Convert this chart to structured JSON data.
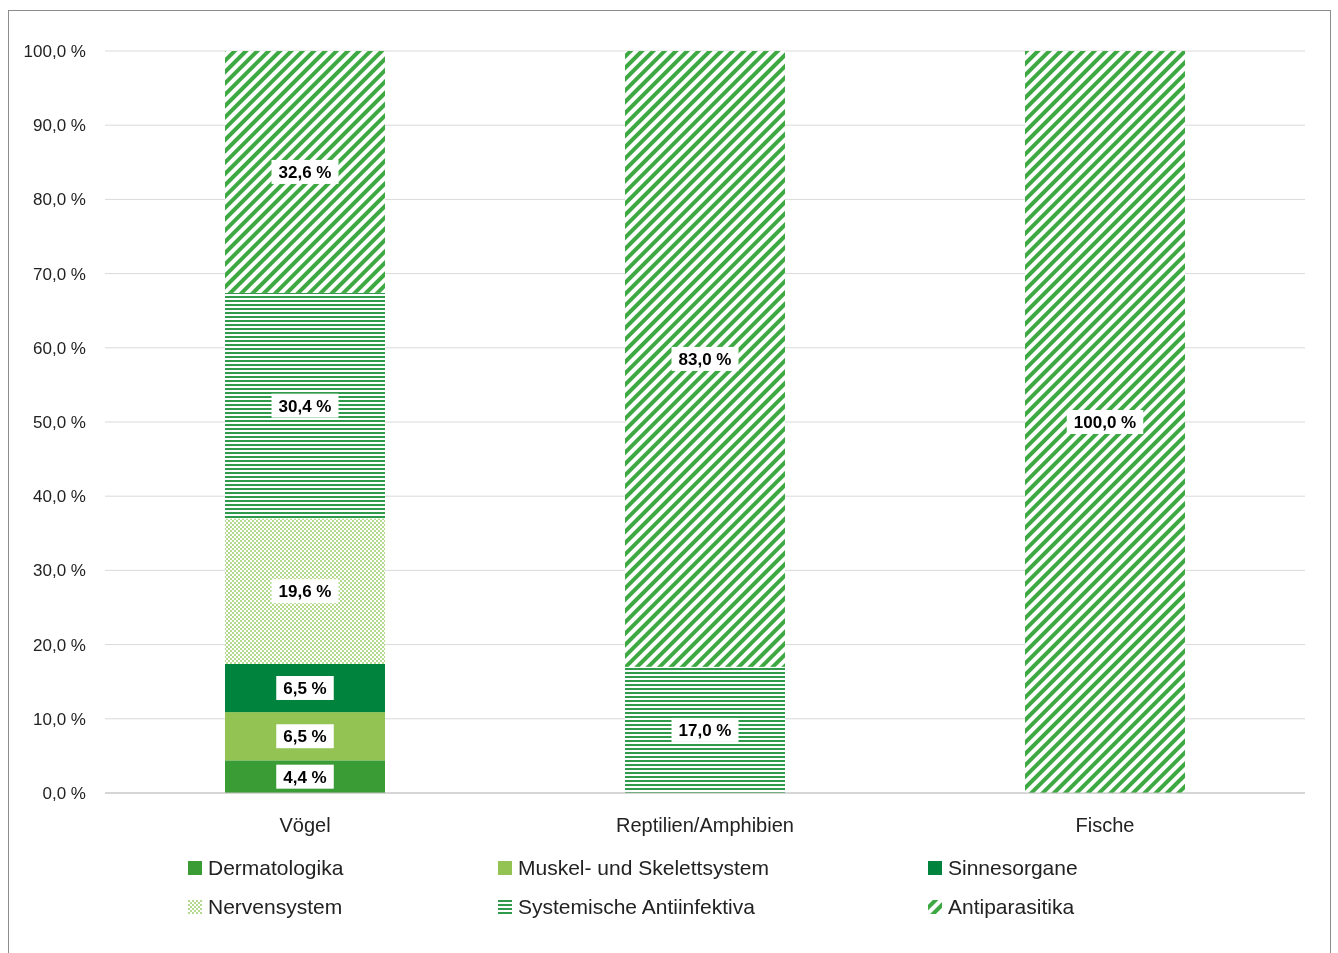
{
  "chart_data": {
    "type": "bar",
    "stacked": true,
    "categories": [
      "Vögel",
      "Reptilien/Amphibien",
      "Fische"
    ],
    "ylim": [
      0,
      100
    ],
    "yticks": [
      {
        "value": 0,
        "label": "0,0 %"
      },
      {
        "value": 10,
        "label": "10,0 %"
      },
      {
        "value": 20,
        "label": "20,0 %"
      },
      {
        "value": 30,
        "label": "30,0 %"
      },
      {
        "value": 40,
        "label": "40,0 %"
      },
      {
        "value": 50,
        "label": "50,0 %"
      },
      {
        "value": 60,
        "label": "60,0 %"
      },
      {
        "value": 70,
        "label": "70,0 %"
      },
      {
        "value": 80,
        "label": "80,0 %"
      },
      {
        "value": 90,
        "label": "90,0 %"
      },
      {
        "value": 100,
        "label": "100,0 %"
      }
    ],
    "grid": "y",
    "legend": "bottom",
    "series": [
      {
        "name": "Dermatologika",
        "color": "#3a9c35",
        "values": [
          4.4,
          null,
          null
        ],
        "value_labels": [
          "4,4 %",
          null,
          null
        ]
      },
      {
        "name": "Muskel- und Skelettsystem",
        "color": "#92c353",
        "values": [
          6.5,
          null,
          null
        ],
        "value_labels": [
          "6,5 %",
          null,
          null
        ]
      },
      {
        "name": "Sinnesorgane",
        "color": "#00843d",
        "values": [
          6.5,
          null,
          null
        ],
        "value_labels": [
          "6,5 %",
          null,
          null
        ]
      },
      {
        "name": "Nervensystem",
        "color": "#b5d98f",
        "values": [
          19.6,
          null,
          null
        ],
        "value_labels": [
          "19,6 %",
          null,
          null
        ]
      },
      {
        "name": "Systemische Antiinfektiva",
        "color": "#2e9a4a",
        "values": [
          30.4,
          17.0,
          null
        ],
        "value_labels": [
          "30,4 %",
          "17,0 %",
          null
        ]
      },
      {
        "name": "Antiparasitika",
        "color": "#3ea843",
        "values": [
          32.6,
          83.0,
          100.0
        ],
        "value_labels": [
          "32,6 %",
          "83,0 %",
          "100,0 %"
        ]
      }
    ]
  }
}
